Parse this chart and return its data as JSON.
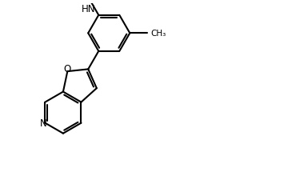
{
  "bg": "#ffffff",
  "lc": "#000000",
  "lw": 1.5,
  "fs": 8.5,
  "r": 0.3,
  "xlim": [
    -0.1,
    3.9
  ],
  "ylim": [
    -0.1,
    2.4
  ]
}
